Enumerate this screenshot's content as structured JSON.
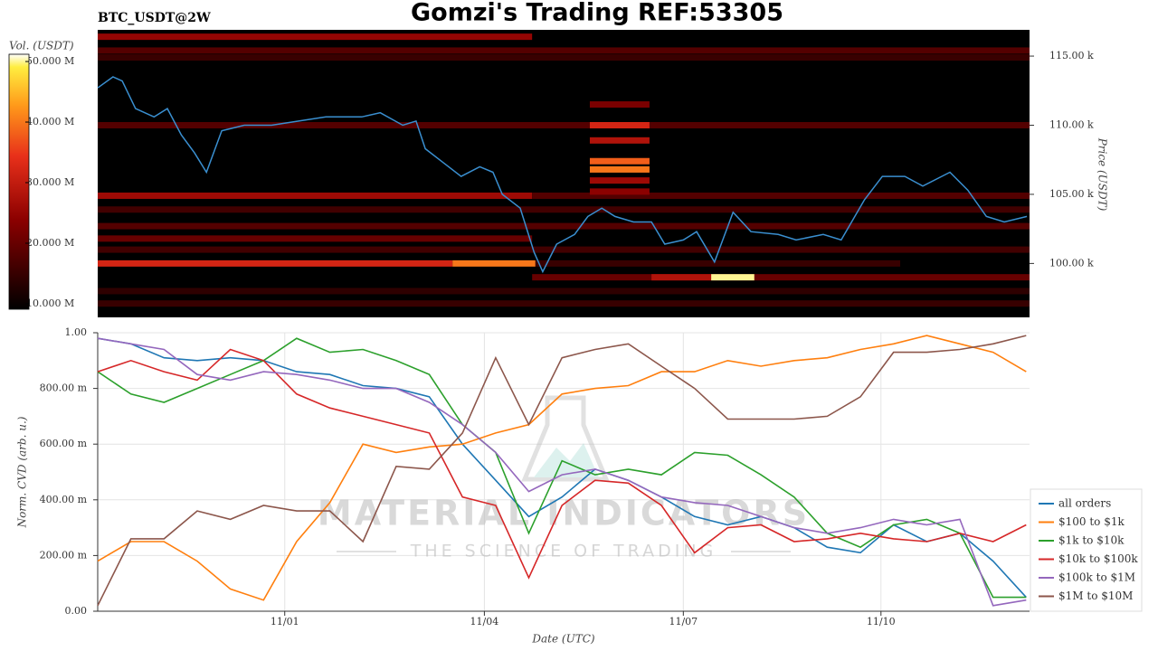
{
  "chart_data": [
    {
      "type": "heatmap",
      "title": "Gomzi's Trading REF:53305",
      "subtitle": "BTC_USDT@2W",
      "y_label": "Price (USDT)",
      "colorbar_label": "Vol. (USDT)",
      "xlim": [
        0,
        14.05
      ],
      "ylim": [
        96100,
        116900
      ],
      "yticks": [
        {
          "value": 100000,
          "label": "100.00 k"
        },
        {
          "value": 105000,
          "label": "105.00 k"
        },
        {
          "value": 110000,
          "label": "110.00 k"
        },
        {
          "value": 115000,
          "label": "115.00 k"
        }
      ],
      "clim": [
        9.1,
        51.2
      ],
      "cticks": [
        {
          "value": 10,
          "label": "10.000 M"
        },
        {
          "value": 20,
          "label": "20.000 M"
        },
        {
          "value": 30,
          "label": "30.000 M"
        },
        {
          "value": 40,
          "label": "40.000 M"
        },
        {
          "value": 50,
          "label": "50.000 M"
        }
      ],
      "cells": [
        {
          "x": [
            0,
            6.55
          ],
          "y": 116400,
          "value": 25
        },
        {
          "x": [
            0,
            14.05
          ],
          "y": 115400,
          "value": 18
        },
        {
          "x": [
            0,
            14.05
          ],
          "y": 114900,
          "value": 15
        },
        {
          "x": [
            0,
            14.05
          ],
          "y": 110000,
          "value": 18
        },
        {
          "x": [
            0,
            6.55
          ],
          "y": 104900,
          "value": 26
        },
        {
          "x": [
            6.55,
            14.05
          ],
          "y": 104900,
          "value": 18
        },
        {
          "x": [
            0,
            14.05
          ],
          "y": 103900,
          "value": 16
        },
        {
          "x": [
            0,
            14.05
          ],
          "y": 102700,
          "value": 18
        },
        {
          "x": [
            0,
            6.55
          ],
          "y": 101800,
          "value": 20
        },
        {
          "x": [
            0,
            14.05
          ],
          "y": 101000,
          "value": 16
        },
        {
          "x": [
            0,
            5.35
          ],
          "y": 100000,
          "value": 32
        },
        {
          "x": [
            5.35,
            6.6
          ],
          "y": 100000,
          "value": 40
        },
        {
          "x": [
            6.6,
            12.1
          ],
          "y": 100000,
          "value": 15
        },
        {
          "x": [
            6.55,
            14.05
          ],
          "y": 99000,
          "value": 20
        },
        {
          "x": [
            8.35,
            9.25
          ],
          "y": 99000,
          "value": 28
        },
        {
          "x": [
            9.25,
            9.9
          ],
          "y": 99000,
          "value": 50
        },
        {
          "x": [
            0,
            14.05
          ],
          "y": 98000,
          "value": 14
        },
        {
          "x": [
            0,
            14.05
          ],
          "y": 97100,
          "value": 15
        },
        {
          "x": [
            7.42,
            8.32
          ],
          "y": 111500,
          "value": 22
        },
        {
          "x": [
            7.42,
            8.32
          ],
          "y": 110000,
          "value": 32
        },
        {
          "x": [
            7.42,
            8.32
          ],
          "y": 108900,
          "value": 28
        },
        {
          "x": [
            7.42,
            8.32
          ],
          "y": 107400,
          "value": 38
        },
        {
          "x": [
            7.42,
            8.32
          ],
          "y": 106800,
          "value": 40
        },
        {
          "x": [
            7.42,
            8.32
          ],
          "y": 106000,
          "value": 26
        },
        {
          "x": [
            7.42,
            8.32
          ],
          "y": 105200,
          "value": 24
        }
      ],
      "line": {
        "color": "#3a8fd0",
        "x": [
          0,
          0.23,
          0.37,
          0.57,
          0.85,
          1.05,
          1.26,
          1.46,
          1.64,
          1.87,
          2.21,
          2.62,
          3.03,
          3.44,
          3.98,
          4.26,
          4.6,
          4.8,
          4.94,
          5.21,
          5.48,
          5.76,
          5.96,
          6.1,
          6.37,
          6.58,
          6.71,
          6.92,
          7.19,
          7.39,
          7.6,
          7.8,
          8.08,
          8.35,
          8.55,
          8.83,
          9.03,
          9.3,
          9.58,
          9.85,
          10.26,
          10.53,
          10.94,
          11.21,
          11.56,
          11.83,
          12.17,
          12.44,
          12.85,
          13.12,
          13.4,
          13.67,
          14.01
        ],
        "values": [
          112700,
          113500,
          113200,
          111200,
          110600,
          111200,
          109300,
          108000,
          106600,
          109600,
          110000,
          110000,
          110300,
          110600,
          110600,
          110900,
          110000,
          110300,
          108300,
          107300,
          106300,
          107000,
          106600,
          105000,
          104000,
          100800,
          99400,
          101400,
          102100,
          103400,
          104000,
          103400,
          103000,
          103000,
          101400,
          101700,
          102300,
          100100,
          103700,
          102300,
          102100,
          101700,
          102100,
          101700,
          104600,
          106300,
          106300,
          105600,
          106600,
          105300,
          103400,
          103000,
          103400
        ]
      }
    },
    {
      "type": "line",
      "x_label": "Date (UTC)",
      "y_label": "Norm. CVD (arb. u.)",
      "watermark": [
        "MATERIAL INDICATORS",
        "THE SCIENCE OF TRADING"
      ],
      "xlim": [
        0,
        14.05
      ],
      "xticks": [
        {
          "value": 2.82,
          "label": "11/01"
        },
        {
          "value": 5.83,
          "label": "11/04"
        },
        {
          "value": 8.83,
          "label": "11/07"
        },
        {
          "value": 11.81,
          "label": "11/10"
        }
      ],
      "ylim": [
        0,
        1
      ],
      "yticks": [
        {
          "value": 0,
          "label": "0.00"
        },
        {
          "value": 0.2,
          "label": "200.00 m"
        },
        {
          "value": 0.4,
          "label": "400.00 m"
        },
        {
          "value": 0.6,
          "label": "600.00 m"
        },
        {
          "value": 0.8,
          "label": "800.00 m"
        },
        {
          "value": 1,
          "label": "1.00"
        }
      ],
      "grid": true,
      "legend": "right",
      "x": [
        0,
        0.5,
        1,
        1.5,
        2,
        2.5,
        3,
        3.5,
        4,
        4.5,
        5,
        5.5,
        6,
        6.5,
        7,
        7.5,
        8,
        8.5,
        9,
        9.5,
        10,
        10.5,
        11,
        11.5,
        12,
        12.5,
        13,
        13.5,
        14
      ],
      "series": [
        {
          "name": "all orders",
          "color": "#1f77b4",
          "values": [
            0.98,
            0.96,
            0.91,
            0.9,
            0.91,
            0.9,
            0.86,
            0.85,
            0.81,
            0.8,
            0.77,
            0.6,
            0.47,
            0.34,
            0.41,
            0.51,
            0.47,
            0.41,
            0.34,
            0.31,
            0.34,
            0.3,
            0.23,
            0.21,
            0.31,
            0.25,
            0.28,
            0.18,
            0.05
          ]
        },
        {
          "name": "$100 to $1k",
          "color": "#ff7f0e",
          "values": [
            0.18,
            0.25,
            0.25,
            0.18,
            0.08,
            0.04,
            0.25,
            0.39,
            0.6,
            0.57,
            0.59,
            0.6,
            0.64,
            0.67,
            0.78,
            0.8,
            0.81,
            0.86,
            0.86,
            0.9,
            0.88,
            0.9,
            0.91,
            0.94,
            0.96,
            0.99,
            0.96,
            0.93,
            0.86
          ]
        },
        {
          "name": "$1k to $10k",
          "color": "#2ca02c",
          "values": [
            0.86,
            0.78,
            0.75,
            0.8,
            0.85,
            0.9,
            0.98,
            0.93,
            0.94,
            0.9,
            0.85,
            0.67,
            0.57,
            0.28,
            0.54,
            0.49,
            0.51,
            0.49,
            0.57,
            0.56,
            0.49,
            0.41,
            0.28,
            0.23,
            0.31,
            0.33,
            0.28,
            0.05,
            0.05
          ]
        },
        {
          "name": "$10k to $100k",
          "color": "#d62728",
          "values": [
            0.86,
            0.9,
            0.86,
            0.83,
            0.94,
            0.9,
            0.78,
            0.73,
            0.7,
            0.67,
            0.64,
            0.41,
            0.38,
            0.12,
            0.38,
            0.47,
            0.46,
            0.38,
            0.21,
            0.3,
            0.31,
            0.25,
            0.26,
            0.28,
            0.26,
            0.25,
            0.28,
            0.25,
            0.31
          ]
        },
        {
          "name": "$100k to $1M",
          "color": "#9467bd",
          "values": [
            0.98,
            0.96,
            0.94,
            0.85,
            0.83,
            0.86,
            0.85,
            0.83,
            0.8,
            0.8,
            0.75,
            0.67,
            0.57,
            0.43,
            0.49,
            0.51,
            0.47,
            0.41,
            0.39,
            0.38,
            0.34,
            0.3,
            0.28,
            0.3,
            0.33,
            0.31,
            0.33,
            0.02,
            0.04
          ]
        },
        {
          "name": "$1M to $10M",
          "color": "#8c564b",
          "values": [
            0.02,
            0.26,
            0.26,
            0.36,
            0.33,
            0.38,
            0.36,
            0.36,
            0.25,
            0.52,
            0.51,
            0.64,
            0.91,
            0.67,
            0.91,
            0.94,
            0.96,
            0.88,
            0.8,
            0.69,
            0.69,
            0.69,
            0.7,
            0.77,
            0.93,
            0.93,
            0.94,
            0.96,
            0.99
          ]
        }
      ]
    }
  ]
}
